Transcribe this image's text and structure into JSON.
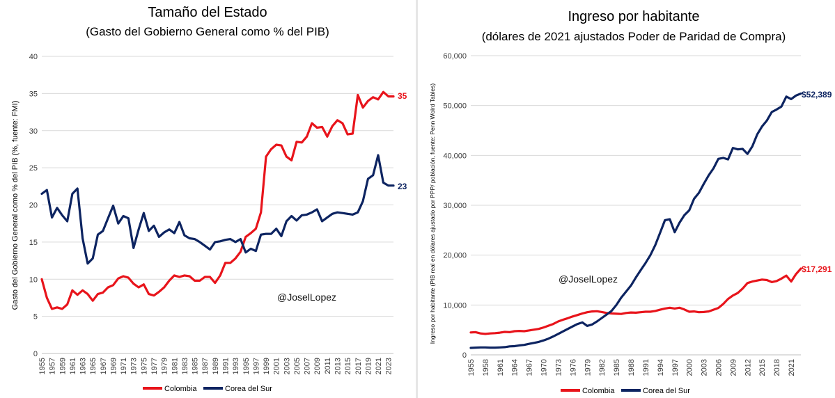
{
  "chart_data": [
    {
      "type": "line",
      "title": "Tamaño del Estado",
      "subtitle": "(Gasto del Gobierno General como % del PIB)",
      "xlabel": "",
      "ylabel": "Gasto del Gobierno General como % del PIB (%, fuente: FMI)",
      "ylim": [
        0,
        40
      ],
      "yticks": [
        "0",
        "5",
        "10",
        "15",
        "20",
        "25",
        "30",
        "35",
        "40"
      ],
      "x_tick_labels": [
        "1955",
        "1957",
        "1959",
        "1961",
        "1963",
        "1965",
        "1967",
        "1969",
        "1971",
        "1973",
        "1975",
        "1977",
        "1979",
        "1981",
        "1983",
        "1985",
        "1987",
        "1989",
        "1991",
        "1993",
        "1995",
        "1997",
        "1999",
        "2001",
        "2003",
        "2005",
        "2007",
        "2009",
        "2011",
        "2013",
        "2015",
        "2017",
        "2019",
        "2021",
        "2023"
      ],
      "x_start": 1955,
      "x_end": 2024,
      "annotation": "@JoselLopez",
      "legend_position": "bottom",
      "grid": true,
      "series": [
        {
          "name": "Colombia",
          "color": "#e8141b",
          "end_label": "35",
          "values": [
            10,
            7.5,
            6,
            6.2,
            6,
            6.6,
            8.5,
            7.9,
            8.5,
            8,
            7.1,
            8,
            8.2,
            8.9,
            9.2,
            10.1,
            10.4,
            10.2,
            9.4,
            8.9,
            9.3,
            8,
            7.8,
            8.3,
            8.9,
            9.8,
            10.5,
            10.3,
            10.5,
            10.4,
            9.8,
            9.8,
            10.3,
            10.3,
            9.5,
            10.5,
            12.2,
            12.2,
            12.8,
            13.7,
            15.7,
            16.2,
            16.8,
            19,
            26.5,
            27.5,
            28.1,
            28,
            26.5,
            26,
            28.5,
            28.4,
            29.2,
            31,
            30.4,
            30.5,
            29.2,
            30.6,
            31.4,
            31,
            29.5,
            29.6,
            34.8,
            33.1,
            34,
            34.5,
            34.2,
            35.2,
            34.6,
            34.6
          ]
        },
        {
          "name": "Corea del Sur",
          "color": "#0d2461",
          "end_label": "23",
          "values": [
            21.5,
            22,
            18.3,
            19.6,
            18.6,
            17.8,
            21.5,
            22.2,
            15.5,
            12.1,
            12.8,
            16,
            16.5,
            18.2,
            19.9,
            17.5,
            18.5,
            18.2,
            14.2,
            16.7,
            18.9,
            16.5,
            17.2,
            15.7,
            16.3,
            16.7,
            16.2,
            17.7,
            15.9,
            15.5,
            15.4,
            15,
            14.5,
            14,
            15,
            15.1,
            15.3,
            15.4,
            15,
            15.4,
            13.6,
            14.1,
            13.8,
            16,
            16.1,
            16.1,
            16.8,
            15.8,
            17.8,
            18.5,
            17.9,
            18.6,
            18.7,
            19,
            19.4,
            17.8,
            18.3,
            18.8,
            19,
            18.9,
            18.8,
            18.7,
            19,
            20.5,
            23.5,
            24,
            26.7,
            23,
            22.6,
            22.6
          ]
        }
      ]
    },
    {
      "type": "line",
      "title": "Ingreso por habitante",
      "subtitle": "(dólares de 2021 ajustados Poder de Paridad de Compra)",
      "xlabel": "",
      "ylabel": "Ingreso por habitante (PIB real en dólares ajustado por PPP/ población, fuente: Penn Wolrd Tables)",
      "ylim": [
        0,
        60000
      ],
      "yticks": [
        "0",
        "10,000",
        "20,000",
        "30,000",
        "40,000",
        "50,000",
        "60,000"
      ],
      "x_tick_labels": [
        "1955",
        "1958",
        "1961",
        "1964",
        "1967",
        "1970",
        "1973",
        "1976",
        "1979",
        "1982",
        "1985",
        "1988",
        "1991",
        "1994",
        "1997",
        "2000",
        "2003",
        "2006",
        "2009",
        "2012",
        "2015",
        "2018",
        "2021"
      ],
      "x_start": 1955,
      "x_end": 2023,
      "annotation": "@JoselLopez",
      "legend_position": "bottom",
      "grid": true,
      "series": [
        {
          "name": "Colombia",
          "color": "#e8141b",
          "end_label": "$17,291",
          "values": [
            4500,
            4550,
            4300,
            4200,
            4300,
            4350,
            4450,
            4600,
            4550,
            4750,
            4800,
            4750,
            4900,
            5050,
            5200,
            5500,
            5850,
            6200,
            6700,
            7050,
            7350,
            7700,
            8000,
            8300,
            8550,
            8700,
            8750,
            8600,
            8400,
            8300,
            8250,
            8200,
            8400,
            8500,
            8450,
            8550,
            8650,
            8650,
            8800,
            9050,
            9300,
            9450,
            9300,
            9450,
            9100,
            8650,
            8700,
            8550,
            8600,
            8700,
            9050,
            9400,
            10200,
            11200,
            11900,
            12400,
            13300,
            14400,
            14700,
            14900,
            15100,
            15000,
            14600,
            14800,
            15300,
            15900,
            14700,
            16200,
            17291
          ]
        },
        {
          "name": "Corea del Sur",
          "color": "#0d2461",
          "end_label": "$52,389",
          "values": [
            1400,
            1450,
            1500,
            1500,
            1450,
            1450,
            1500,
            1550,
            1700,
            1750,
            1900,
            2000,
            2200,
            2400,
            2600,
            2900,
            3250,
            3700,
            4200,
            4700,
            5200,
            5700,
            6200,
            6500,
            5800,
            6100,
            6700,
            7400,
            8100,
            8800,
            10000,
            11500,
            12700,
            13900,
            15500,
            17000,
            18400,
            20000,
            22000,
            24500,
            27000,
            27200,
            24600,
            26500,
            28000,
            29000,
            31300,
            32500,
            34300,
            36000,
            37400,
            39300,
            39500,
            39200,
            41500,
            41200,
            41300,
            40300,
            41800,
            44200,
            45800,
            47000,
            48700,
            49200,
            49800,
            51800,
            51300,
            52000,
            52389
          ]
        }
      ]
    }
  ]
}
